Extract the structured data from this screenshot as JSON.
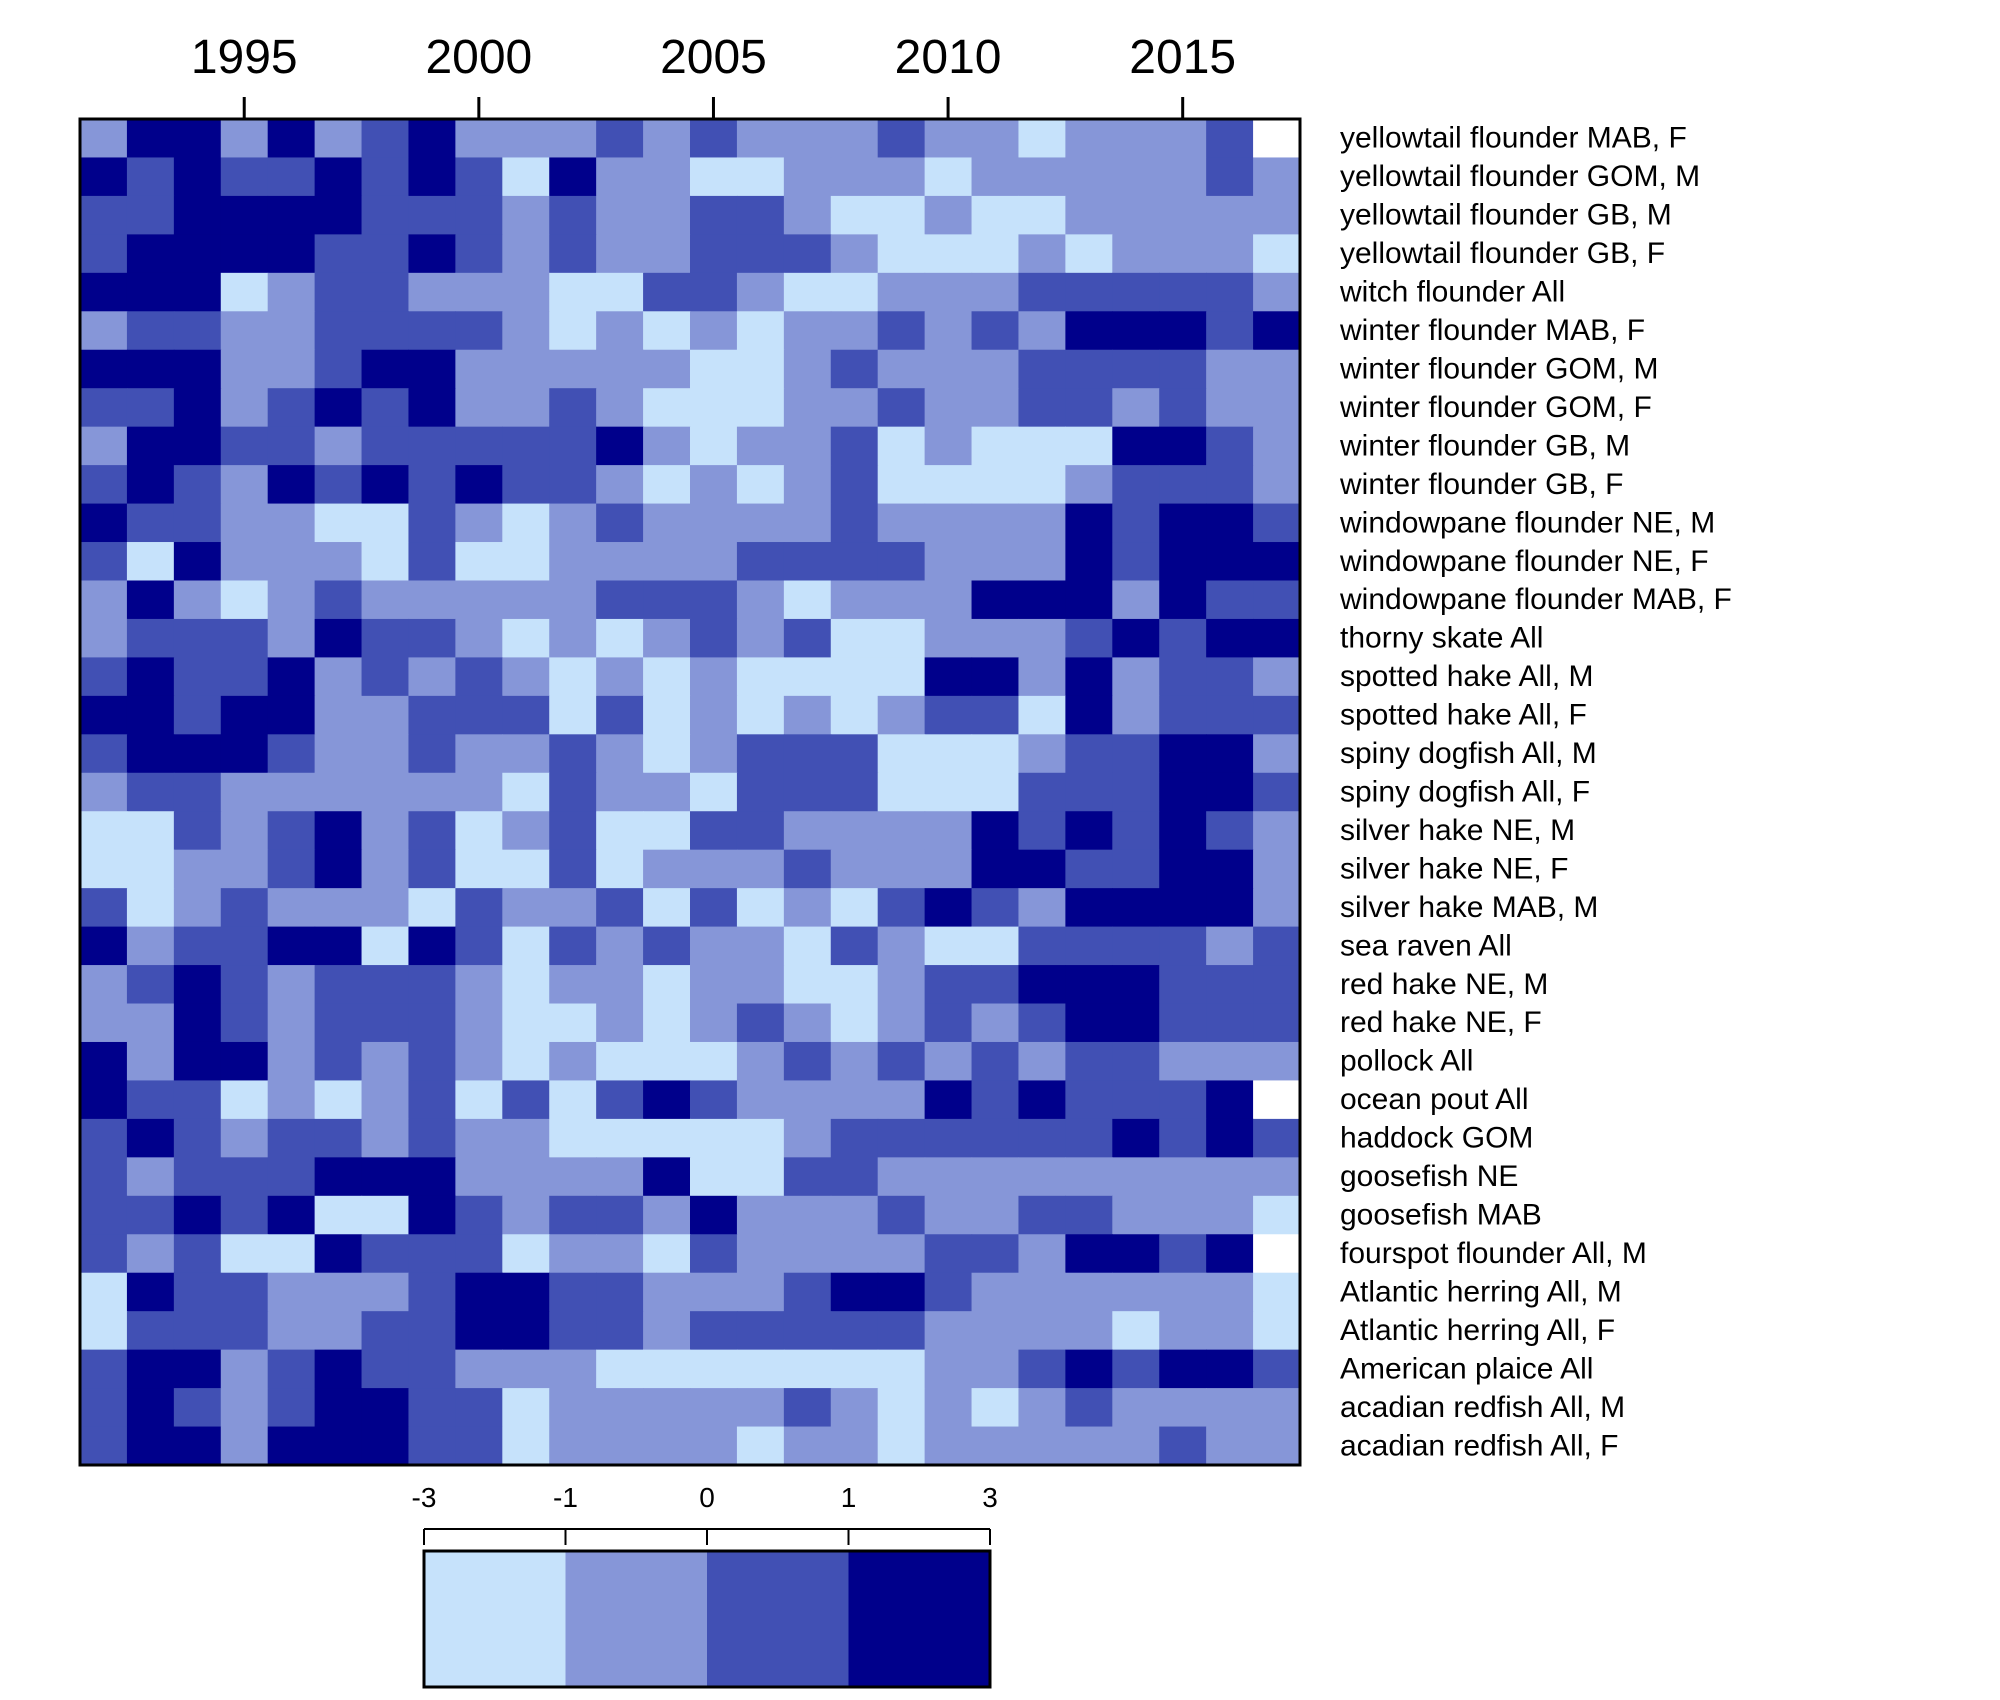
{
  "chart_data": {
    "type": "heatmap",
    "title": "",
    "xlabel": "",
    "ylabel": "",
    "x_start_year": 1992,
    "x_end_year": 2017,
    "x_tick_labels": [
      "1995",
      "2000",
      "2005",
      "2010",
      "2015"
    ],
    "x_tick_years": [
      1995,
      2000,
      2005,
      2010,
      2015
    ],
    "rows": [
      "yellowtail flounder MAB, F",
      "yellowtail flounder GOM, M",
      "yellowtail flounder GB, M",
      "yellowtail flounder GB, F",
      "witch flounder All",
      "winter flounder MAB, F",
      "winter flounder GOM, M",
      "winter flounder GOM, F",
      "winter flounder GB, M",
      "winter flounder GB, F",
      "windowpane flounder NE, M",
      "windowpane flounder NE, F",
      "windowpane flounder MAB, F",
      "thorny skate All",
      "spotted hake All, M",
      "spotted hake All, F",
      "spiny dogfish All, M",
      "spiny dogfish All, F",
      "silver hake NE, M",
      "silver hake NE, F",
      "silver hake MAB, M",
      "sea raven All",
      "red hake NE, M",
      "red hake NE, F",
      "pollock All",
      "ocean pout All",
      "haddock GOM",
      "goosefish NE",
      "goosefish MAB",
      "fourspot flounder All, M",
      "Atlantic herring All, M",
      "Atlantic herring All, F",
      "American plaice All",
      "acadian redfish All, M",
      "acadian redfish All, F"
    ],
    "value_classes_note": "0:[-3,-1) 1:[-1,0) 2:[0,1) 3:[1,3] null:no data",
    "values": [
      [
        1,
        3,
        3,
        1,
        3,
        1,
        2,
        3,
        1,
        1,
        1,
        2,
        1,
        2,
        1,
        1,
        1,
        2,
        1,
        1,
        0,
        1,
        1,
        1,
        2,
        null
      ],
      [
        3,
        2,
        3,
        2,
        2,
        3,
        2,
        3,
        2,
        0,
        3,
        1,
        1,
        0,
        0,
        1,
        1,
        1,
        0,
        1,
        1,
        1,
        1,
        1,
        2,
        1
      ],
      [
        2,
        2,
        3,
        3,
        3,
        3,
        2,
        2,
        2,
        1,
        2,
        1,
        1,
        2,
        2,
        1,
        0,
        0,
        1,
        0,
        0,
        1,
        1,
        1,
        1,
        1
      ],
      [
        2,
        3,
        3,
        3,
        3,
        2,
        2,
        3,
        2,
        1,
        2,
        1,
        1,
        2,
        2,
        2,
        1,
        0,
        0,
        0,
        1,
        0,
        1,
        1,
        1,
        0
      ],
      [
        3,
        3,
        3,
        0,
        1,
        2,
        2,
        1,
        1,
        1,
        0,
        0,
        2,
        2,
        1,
        0,
        0,
        1,
        1,
        1,
        2,
        2,
        2,
        2,
        2,
        1
      ],
      [
        1,
        2,
        2,
        1,
        1,
        2,
        2,
        2,
        2,
        1,
        0,
        1,
        0,
        1,
        0,
        1,
        1,
        2,
        1,
        2,
        1,
        3,
        3,
        3,
        2,
        3
      ],
      [
        3,
        3,
        3,
        1,
        1,
        2,
        3,
        3,
        1,
        1,
        1,
        1,
        1,
        0,
        0,
        1,
        2,
        1,
        1,
        1,
        2,
        2,
        2,
        2,
        1,
        1
      ],
      [
        2,
        2,
        3,
        1,
        2,
        3,
        2,
        3,
        1,
        1,
        2,
        1,
        0,
        0,
        0,
        1,
        1,
        2,
        1,
        1,
        2,
        2,
        1,
        2,
        1,
        1
      ],
      [
        1,
        3,
        3,
        2,
        2,
        1,
        2,
        2,
        2,
        2,
        2,
        3,
        1,
        0,
        1,
        1,
        2,
        0,
        1,
        0,
        0,
        0,
        3,
        3,
        2,
        1
      ],
      [
        2,
        3,
        2,
        1,
        3,
        2,
        3,
        2,
        3,
        2,
        2,
        1,
        0,
        1,
        0,
        1,
        2,
        0,
        0,
        0,
        0,
        1,
        2,
        2,
        2,
        1
      ],
      [
        3,
        2,
        2,
        1,
        1,
        0,
        0,
        2,
        1,
        0,
        1,
        2,
        1,
        1,
        1,
        1,
        2,
        1,
        1,
        1,
        1,
        3,
        2,
        3,
        3,
        2
      ],
      [
        2,
        0,
        3,
        1,
        1,
        1,
        0,
        2,
        0,
        0,
        1,
        1,
        1,
        1,
        2,
        2,
        2,
        2,
        1,
        1,
        1,
        3,
        2,
        3,
        3,
        3
      ],
      [
        1,
        3,
        1,
        0,
        1,
        2,
        1,
        1,
        1,
        1,
        1,
        2,
        2,
        2,
        1,
        0,
        1,
        1,
        1,
        3,
        3,
        3,
        1,
        3,
        2,
        2
      ],
      [
        1,
        2,
        2,
        2,
        1,
        3,
        2,
        2,
        1,
        0,
        1,
        0,
        1,
        2,
        1,
        2,
        0,
        0,
        1,
        1,
        1,
        2,
        3,
        2,
        3,
        3
      ],
      [
        2,
        3,
        2,
        2,
        3,
        1,
        2,
        1,
        2,
        1,
        0,
        1,
        0,
        1,
        0,
        0,
        0,
        0,
        3,
        3,
        1,
        3,
        1,
        2,
        2,
        1
      ],
      [
        3,
        3,
        2,
        3,
        3,
        1,
        1,
        2,
        2,
        2,
        0,
        2,
        0,
        1,
        0,
        1,
        0,
        1,
        2,
        2,
        0,
        3,
        1,
        2,
        2,
        2
      ],
      [
        2,
        3,
        3,
        3,
        2,
        1,
        1,
        2,
        1,
        1,
        2,
        1,
        0,
        1,
        2,
        2,
        2,
        0,
        0,
        0,
        1,
        2,
        2,
        3,
        3,
        1
      ],
      [
        1,
        2,
        2,
        1,
        1,
        1,
        1,
        1,
        1,
        0,
        2,
        1,
        1,
        0,
        2,
        2,
        2,
        0,
        0,
        0,
        2,
        2,
        2,
        3,
        3,
        2
      ],
      [
        0,
        0,
        2,
        1,
        2,
        3,
        1,
        2,
        0,
        1,
        2,
        0,
        0,
        2,
        2,
        1,
        1,
        1,
        1,
        3,
        2,
        3,
        2,
        3,
        2,
        1
      ],
      [
        0,
        0,
        1,
        1,
        2,
        3,
        1,
        2,
        0,
        0,
        2,
        0,
        1,
        1,
        1,
        2,
        1,
        1,
        1,
        3,
        3,
        2,
        2,
        3,
        3,
        1
      ],
      [
        2,
        0,
        1,
        2,
        1,
        1,
        1,
        0,
        2,
        1,
        1,
        2,
        0,
        2,
        0,
        1,
        0,
        2,
        3,
        2,
        1,
        3,
        3,
        3,
        3,
        1
      ],
      [
        3,
        1,
        2,
        2,
        3,
        3,
        0,
        3,
        2,
        0,
        2,
        1,
        2,
        1,
        1,
        0,
        2,
        1,
        0,
        0,
        2,
        2,
        2,
        2,
        1,
        2
      ],
      [
        1,
        2,
        3,
        2,
        1,
        2,
        2,
        2,
        1,
        0,
        1,
        1,
        0,
        1,
        1,
        0,
        0,
        1,
        2,
        2,
        3,
        3,
        3,
        2,
        2,
        2
      ],
      [
        1,
        1,
        3,
        2,
        1,
        2,
        2,
        2,
        1,
        0,
        0,
        1,
        0,
        1,
        2,
        1,
        0,
        1,
        2,
        1,
        2,
        3,
        3,
        2,
        2,
        2
      ],
      [
        3,
        1,
        3,
        3,
        1,
        2,
        1,
        2,
        1,
        0,
        1,
        0,
        0,
        0,
        1,
        2,
        1,
        2,
        1,
        2,
        1,
        2,
        2,
        1,
        1,
        1
      ],
      [
        3,
        2,
        2,
        0,
        1,
        0,
        1,
        2,
        0,
        2,
        0,
        2,
        3,
        2,
        1,
        1,
        1,
        1,
        3,
        2,
        3,
        2,
        2,
        2,
        3,
        null
      ],
      [
        2,
        3,
        2,
        1,
        2,
        2,
        1,
        2,
        1,
        1,
        0,
        0,
        0,
        0,
        0,
        1,
        2,
        2,
        2,
        2,
        2,
        2,
        3,
        2,
        3,
        2
      ],
      [
        2,
        1,
        2,
        2,
        2,
        3,
        3,
        3,
        1,
        1,
        1,
        1,
        3,
        0,
        0,
        2,
        2,
        1,
        1,
        1,
        1,
        1,
        1,
        1,
        1,
        1
      ],
      [
        2,
        2,
        3,
        2,
        3,
        0,
        0,
        3,
        2,
        1,
        2,
        2,
        1,
        3,
        1,
        1,
        1,
        2,
        1,
        1,
        2,
        2,
        1,
        1,
        1,
        0
      ],
      [
        2,
        1,
        2,
        0,
        0,
        3,
        2,
        2,
        2,
        0,
        1,
        1,
        0,
        2,
        1,
        1,
        1,
        1,
        2,
        2,
        1,
        3,
        3,
        2,
        3,
        null
      ],
      [
        0,
        3,
        2,
        2,
        1,
        1,
        1,
        2,
        3,
        3,
        2,
        2,
        1,
        1,
        1,
        2,
        3,
        3,
        2,
        1,
        1,
        1,
        1,
        1,
        1,
        0
      ],
      [
        0,
        2,
        2,
        2,
        1,
        1,
        2,
        2,
        3,
        3,
        2,
        2,
        1,
        2,
        2,
        2,
        2,
        2,
        1,
        1,
        1,
        1,
        0,
        1,
        1,
        0
      ],
      [
        2,
        3,
        3,
        1,
        2,
        3,
        2,
        2,
        1,
        1,
        1,
        0,
        0,
        0,
        0,
        0,
        0,
        0,
        1,
        1,
        2,
        3,
        2,
        3,
        3,
        2
      ],
      [
        2,
        3,
        2,
        1,
        2,
        3,
        3,
        2,
        2,
        0,
        1,
        1,
        1,
        1,
        1,
        2,
        1,
        0,
        1,
        0,
        1,
        2,
        1,
        1,
        1,
        1
      ],
      [
        2,
        3,
        3,
        1,
        3,
        3,
        3,
        2,
        2,
        0,
        1,
        1,
        1,
        1,
        0,
        1,
        1,
        0,
        1,
        1,
        1,
        1,
        1,
        2,
        1,
        1
      ]
    ],
    "class_colors": [
      "#c6e2fb",
      "#8696d8",
      "#4150b4",
      "#00008b"
    ],
    "missing_color": "#ffffff",
    "legend": {
      "position": "bottom",
      "tick_labels": [
        "-3",
        "-1",
        "0",
        "1",
        "3"
      ]
    }
  }
}
